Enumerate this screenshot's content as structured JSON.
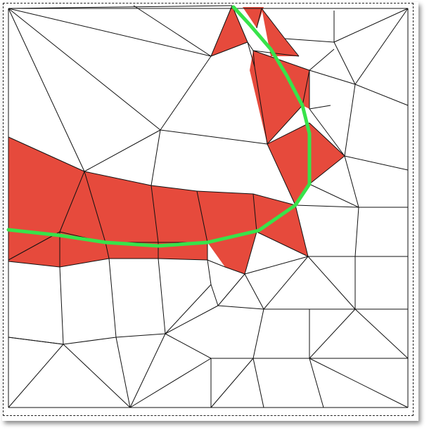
{
  "figure": {
    "kind": "triangulated mesh with highlighted cells and a path",
    "colors": {
      "highlight_fill": "#e64a3c",
      "mesh_stroke": "#111111",
      "path_stroke": "#38e34a",
      "background": "#ffffff",
      "frame_border": "#222222"
    }
  }
}
